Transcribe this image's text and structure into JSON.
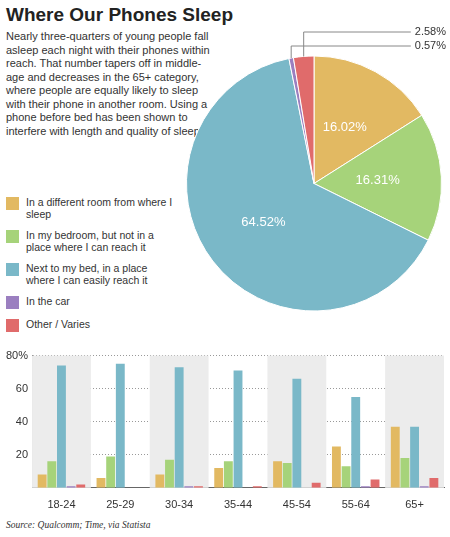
{
  "title": "Where Our Phones Sleep",
  "description": "Nearly three-quarters of young people fall asleep each night with their phones within reach. That number tapers off in middle-age and decreases in the 65+ category, where people are equally likely to sleep with their phone in another room. Using a phone before bed has been shown to interfere with length and quality of sleep.",
  "source": "Source: Qualcomm; Time, via Statista",
  "chart_data": [
    {
      "type": "pie",
      "categories": [
        "In a different room from where I sleep",
        "In my bedroom, but not in a place where I can reach it",
        "Next to my bed, in a place where I can easily reach it",
        "In the car",
        "Other / Varies"
      ],
      "values": [
        16.02,
        16.31,
        64.52,
        0.57,
        2.58
      ],
      "value_labels": [
        "16.02%",
        "16.31%",
        "64.52%",
        "0.57%",
        "2.58%"
      ],
      "colors": [
        "#e2b962",
        "#a6d37a",
        "#7ab8c8",
        "#9b7fc0",
        "#e06b6b"
      ],
      "data_labels": true,
      "legend": "left"
    },
    {
      "type": "bar",
      "categories": [
        "18-24",
        "25-29",
        "30-34",
        "35-44",
        "45-54",
        "55-64",
        "65+"
      ],
      "series": [
        {
          "name": "In a different room from where I sleep",
          "color": "#e2b962",
          "values": [
            8,
            6,
            8,
            12,
            16,
            25,
            37
          ]
        },
        {
          "name": "In my bedroom, but not in a place where I can reach it",
          "color": "#a6d37a",
          "values": [
            16,
            19,
            17,
            16,
            15,
            13,
            18
          ]
        },
        {
          "name": "Next to my bed, in a place where I can easily reach it",
          "color": "#7ab8c8",
          "values": [
            74,
            75,
            73,
            71,
            66,
            55,
            37
          ]
        },
        {
          "name": "In the car",
          "color": "#9b7fc0",
          "values": [
            1,
            0,
            1,
            0,
            0,
            1,
            1
          ]
        },
        {
          "name": "Other / Varies",
          "color": "#e06b6b",
          "values": [
            2,
            0,
            1,
            1,
            3,
            5,
            6
          ]
        }
      ],
      "ylim": [
        0,
        80
      ],
      "yticks": [
        20,
        40,
        60,
        {
          "value": 80,
          "label": "80%"
        }
      ],
      "grid": true
    }
  ]
}
